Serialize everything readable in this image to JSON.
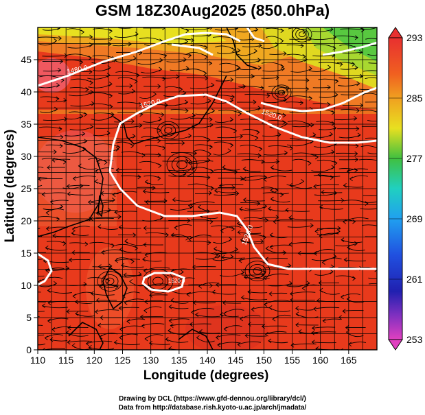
{
  "title": "GSM 18Z30Aug2025 (850.0hPa)",
  "axes": {
    "xlabel": "Longitude (degrees)",
    "ylabel": "Latitude  (degrees)",
    "xticks": [
      "110",
      "115",
      "120",
      "125",
      "130",
      "135",
      "140",
      "145",
      "150",
      "155",
      "160",
      "165"
    ],
    "yticks": [
      "0",
      "5",
      "10",
      "15",
      "20",
      "25",
      "30",
      "35",
      "40",
      "45"
    ],
    "xlim": [
      110,
      170
    ],
    "ylim": [
      0,
      50
    ]
  },
  "colorbar": {
    "labels": [
      "293",
      "285",
      "277",
      "269",
      "261",
      "253"
    ],
    "colors": {
      "253": "#e040c0",
      "261": "#2030c0",
      "269": "#20a0f0",
      "277": "#40c040",
      "285": "#f0a020",
      "293": "#e83030"
    }
  },
  "contour_labels": [
    "1480.0",
    "1520.0",
    "1520.0",
    "1520.0",
    "1520.0"
  ],
  "credits": {
    "line1": "Drawing by DCL (https://www.gfd-dennou.org/library/dcl/)",
    "line2": "Data from http://database.rish.kyoto-u.ac.jp/arch/jmadata/"
  }
}
